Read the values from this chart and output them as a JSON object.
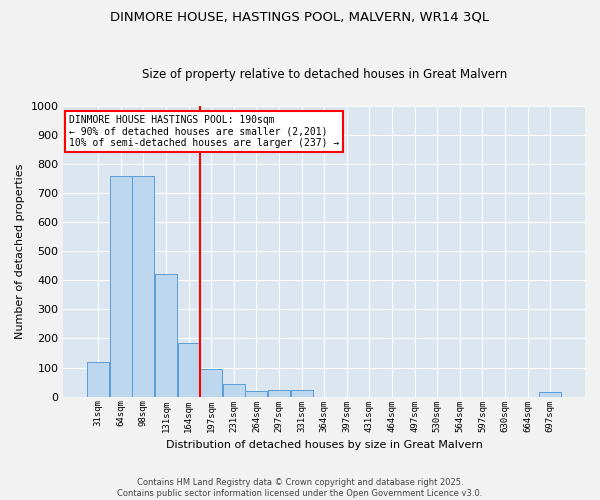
{
  "title": "DINMORE HOUSE, HASTINGS POOL, MALVERN, WR14 3QL",
  "subtitle": "Size of property relative to detached houses in Great Malvern",
  "xlabel": "Distribution of detached houses by size in Great Malvern",
  "ylabel": "Number of detached properties",
  "bar_values": [
    120,
    760,
    760,
    420,
    185,
    95,
    45,
    20,
    22,
    22,
    0,
    0,
    0,
    0,
    0,
    0,
    0,
    0,
    0,
    0,
    15
  ],
  "categories": [
    "31sqm",
    "64sqm",
    "98sqm",
    "131sqm",
    "164sqm",
    "197sqm",
    "231sqm",
    "264sqm",
    "297sqm",
    "331sqm",
    "364sqm",
    "397sqm",
    "431sqm",
    "464sqm",
    "497sqm",
    "530sqm",
    "564sqm",
    "597sqm",
    "630sqm",
    "664sqm",
    "697sqm"
  ],
  "bar_color": "#bdd7ee",
  "bar_edge_color": "#5b9bd5",
  "vline_color": "red",
  "annotation_text": "DINMORE HOUSE HASTINGS POOL: 190sqm\n← 90% of detached houses are smaller (2,201)\n10% of semi-detached houses are larger (237) →",
  "ylim": [
    0,
    1000
  ],
  "background_color": "#dce6f1",
  "grid_color": "white",
  "fig_bg_color": "#f2f2f2",
  "footer_line1": "Contains HM Land Registry data © Crown copyright and database right 2025.",
  "footer_line2": "Contains public sector information licensed under the Open Government Licence v3.0."
}
